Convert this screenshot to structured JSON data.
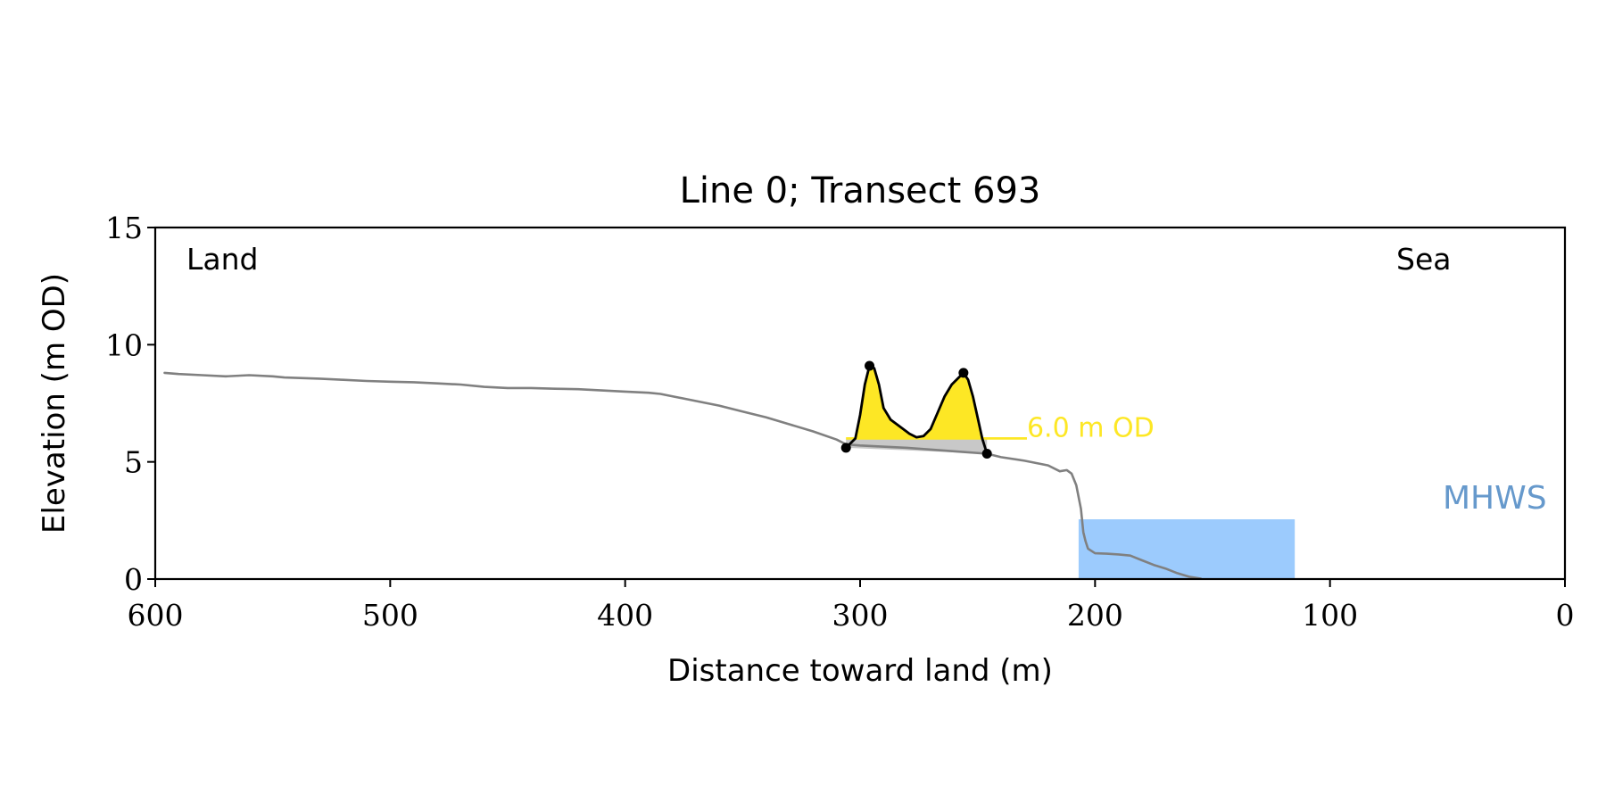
{
  "chart_data": {
    "type": "line",
    "title": "Line 0; Transect 693",
    "xlabel": "Distance toward land (m)",
    "ylabel": "Elevation (m OD)",
    "xlim": [
      600,
      0
    ],
    "ylim": [
      0,
      15
    ],
    "x_ticks": [
      600,
      500,
      400,
      300,
      200,
      100,
      0
    ],
    "y_ticks": [
      0,
      5,
      10,
      15
    ],
    "grid": false,
    "annotations": {
      "land_label": "Land",
      "sea_label": "Sea",
      "threshold_label": "6.0 m OD",
      "mhws_label": "MHWS"
    },
    "colors": {
      "profile": "#808080",
      "dune_fill": "#fde725",
      "dune_outline": "#000000",
      "dune_base_fill": "#c8c8c8",
      "threshold_line": "#fde725",
      "threshold_text": "#fde725",
      "mhws_fill": "#9ccbfd",
      "mhws_text": "#6699cc",
      "axes": "#000000"
    },
    "threshold": {
      "y": 6.0,
      "x_from": 306,
      "x_to": 229
    },
    "mhws": {
      "x_from": 207,
      "x_to": 115,
      "y": 2.55
    },
    "series": [
      {
        "role": "ground-profile",
        "points": [
          [
            596,
            8.8
          ],
          [
            590,
            8.75
          ],
          [
            580,
            8.7
          ],
          [
            570,
            8.65
          ],
          [
            560,
            8.7
          ],
          [
            550,
            8.65
          ],
          [
            545,
            8.6
          ],
          [
            530,
            8.55
          ],
          [
            520,
            8.5
          ],
          [
            510,
            8.45
          ],
          [
            500,
            8.42
          ],
          [
            490,
            8.4
          ],
          [
            480,
            8.35
          ],
          [
            470,
            8.3
          ],
          [
            460,
            8.2
          ],
          [
            450,
            8.15
          ],
          [
            440,
            8.15
          ],
          [
            430,
            8.12
          ],
          [
            420,
            8.1
          ],
          [
            410,
            8.05
          ],
          [
            400,
            8.0
          ],
          [
            390,
            7.95
          ],
          [
            385,
            7.9
          ],
          [
            380,
            7.8
          ],
          [
            370,
            7.6
          ],
          [
            360,
            7.4
          ],
          [
            350,
            7.15
          ],
          [
            340,
            6.9
          ],
          [
            330,
            6.6
          ],
          [
            320,
            6.3
          ],
          [
            310,
            5.95
          ],
          [
            306,
            5.75
          ],
          [
            300,
            5.7
          ],
          [
            280,
            5.6
          ],
          [
            260,
            5.45
          ],
          [
            246,
            5.35
          ],
          [
            240,
            5.2
          ],
          [
            230,
            5.05
          ],
          [
            220,
            4.85
          ],
          [
            215,
            4.6
          ],
          [
            212,
            4.65
          ],
          [
            210,
            4.5
          ],
          [
            208,
            4.0
          ],
          [
            206,
            3.0
          ],
          [
            205,
            2.0
          ],
          [
            204,
            1.6
          ],
          [
            203,
            1.3
          ],
          [
            200,
            1.1
          ],
          [
            195,
            1.08
          ],
          [
            190,
            1.05
          ],
          [
            185,
            1.0
          ],
          [
            180,
            0.8
          ],
          [
            175,
            0.6
          ],
          [
            170,
            0.45
          ],
          [
            165,
            0.25
          ],
          [
            160,
            0.1
          ],
          [
            155,
            0.02
          ]
        ]
      },
      {
        "role": "dune-crest-profile",
        "points": [
          [
            306,
            5.6
          ],
          [
            302,
            6.0
          ],
          [
            300,
            7.0
          ],
          [
            298,
            8.3
          ],
          [
            296,
            9.1
          ],
          [
            294,
            9.0
          ],
          [
            292,
            8.3
          ],
          [
            290,
            7.3
          ],
          [
            287,
            6.8
          ],
          [
            283,
            6.5
          ],
          [
            279,
            6.2
          ],
          [
            276,
            6.05
          ],
          [
            273,
            6.1
          ],
          [
            270,
            6.4
          ],
          [
            267,
            7.1
          ],
          [
            264,
            7.8
          ],
          [
            261,
            8.3
          ],
          [
            258,
            8.6
          ],
          [
            256,
            8.8
          ],
          [
            254,
            8.5
          ],
          [
            252,
            7.8
          ],
          [
            250,
            6.9
          ],
          [
            248,
            6.0
          ],
          [
            246,
            5.35
          ]
        ],
        "markers": [
          [
            306,
            5.6
          ],
          [
            296,
            9.1
          ],
          [
            256,
            8.8
          ],
          [
            246,
            5.35
          ]
        ]
      }
    ]
  }
}
